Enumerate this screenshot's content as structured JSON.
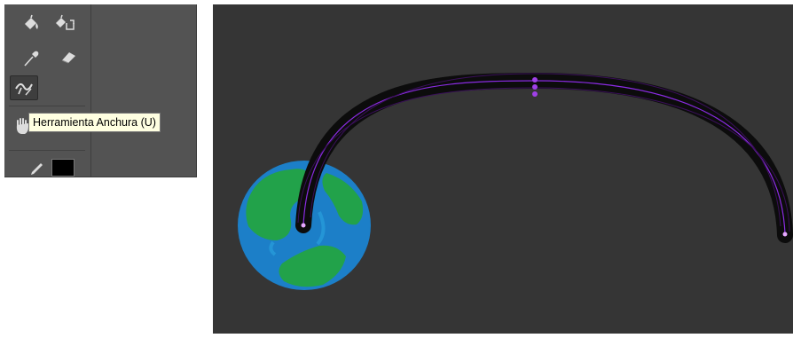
{
  "toolbar": {
    "tools": [
      {
        "name": "paint-bucket-icon"
      },
      {
        "name": "live-paint-selection-icon"
      },
      {
        "name": "eyedropper-icon"
      },
      {
        "name": "eraser-icon"
      },
      {
        "name": "width-tool-icon",
        "active": true
      },
      {
        "name": "hand-icon"
      },
      {
        "name": "pencil-icon"
      }
    ],
    "tooltip": "Herramienta Anchura (U)",
    "fill_color": "#000000"
  },
  "canvas": {
    "background": "#353535",
    "stroke_color": "#8a2be2",
    "anchor_color": "#e6a8ff",
    "globe_ocean": "#1c7fc8",
    "globe_land": "#22a24a"
  }
}
